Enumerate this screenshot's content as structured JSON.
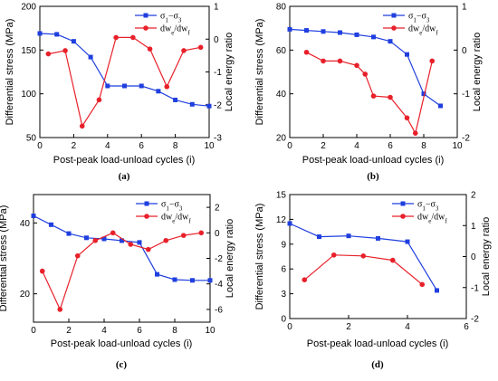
{
  "chart_data": [
    {
      "type": "line",
      "panel_label": "(a)",
      "xlabel": "Post-peak load-unload cycles (i)",
      "ylabel_left": "Differential stress (MPa)",
      "ylabel_right": "Local energy ratio",
      "xlim": [
        0,
        10
      ],
      "xticks": [
        "0",
        "2",
        "4",
        "6",
        "8",
        "10"
      ],
      "ylim_left": [
        50,
        200
      ],
      "yticks_left": [
        "50",
        "100",
        "150",
        "200"
      ],
      "ylim_right": [
        -3,
        1
      ],
      "yticks_right": [
        "-3",
        "-2",
        "-1",
        "0",
        "1"
      ],
      "legend": [
        {
          "name": "σ1−σ3",
          "color": "#1f3fdf"
        },
        {
          "name": "dwe/dwf",
          "color": "#e8202a"
        }
      ],
      "series": [
        {
          "name": "σ1−σ3",
          "axis": "left",
          "color": "#1f3fdf",
          "marker": "square",
          "x": [
            0,
            1,
            2,
            3,
            4,
            5,
            6,
            7,
            8,
            9,
            10
          ],
          "y": [
            169,
            168,
            160,
            142,
            109,
            109,
            109,
            103,
            93,
            88,
            86
          ]
        },
        {
          "name": "dwe/dwf",
          "axis": "right",
          "color": "#e8202a",
          "marker": "circle",
          "x": [
            0.5,
            1.5,
            2.5,
            3.5,
            4.5,
            5.5,
            6.5,
            7.5,
            8.5,
            9.5
          ],
          "y": [
            -0.45,
            -0.35,
            -2.65,
            -1.85,
            0.05,
            0.05,
            -0.3,
            -1.45,
            -0.35,
            -0.25
          ]
        }
      ]
    },
    {
      "type": "line",
      "panel_label": "(b)",
      "xlabel": "Post-peak load-unload cycles (i)",
      "ylabel_left": "Differential stress (MPa)",
      "ylabel_right": "Local energy ratio",
      "xlim": [
        0,
        10
      ],
      "xticks": [
        "0",
        "2",
        "4",
        "6",
        "8",
        "10"
      ],
      "ylim_left": [
        20,
        80
      ],
      "yticks_left": [
        "20",
        "40",
        "60",
        "80"
      ],
      "ylim_right": [
        -2,
        1
      ],
      "yticks_right": [
        "-2",
        "-1",
        "0",
        "1"
      ],
      "legend": [
        {
          "name": "σ1−σ3",
          "color": "#1f3fdf"
        },
        {
          "name": "dwe/dwf",
          "color": "#e8202a"
        }
      ],
      "series": [
        {
          "name": "σ1−σ3",
          "axis": "left",
          "color": "#1f3fdf",
          "marker": "square",
          "x": [
            0,
            1,
            2,
            3,
            4,
            5,
            6,
            7,
            8,
            9
          ],
          "y": [
            69.5,
            69,
            68.5,
            68,
            67,
            66,
            64,
            58,
            40,
            34.5
          ]
        },
        {
          "name": "dwe/dwf",
          "axis": "right",
          "color": "#e8202a",
          "marker": "circle",
          "x": [
            1,
            2,
            3,
            4,
            4.5,
            5,
            6,
            7,
            7.5,
            8.5
          ],
          "y": [
            -0.05,
            -0.25,
            -0.25,
            -0.35,
            -0.55,
            -1.05,
            -1.08,
            -1.55,
            -1.9,
            -0.25
          ]
        }
      ]
    },
    {
      "type": "line",
      "panel_label": "(c)",
      "xlabel": "Post-peak load-unload cycles (i)",
      "ylabel_left": "Differential stress (MPa)",
      "ylabel_right": "Local energy ratio",
      "xlim": [
        0,
        10
      ],
      "xticks": [
        "0",
        "2",
        "4",
        "6",
        "8",
        "10"
      ],
      "ylim_left": [
        12,
        48
      ],
      "yticks_left": [
        "20",
        "40"
      ],
      "ylim_right": [
        -7,
        3
      ],
      "yticks_right": [
        "-6",
        "-4",
        "-2",
        "0",
        "2"
      ],
      "legend": [
        {
          "name": "σ1−σ3",
          "color": "#1f3fdf"
        },
        {
          "name": "dwe/dwf",
          "color": "#e8202a"
        }
      ],
      "series": [
        {
          "name": "σ1−σ3",
          "axis": "left",
          "color": "#1f3fdf",
          "marker": "square",
          "x": [
            0,
            1,
            2,
            3,
            4,
            5,
            6,
            7,
            8,
            9,
            10
          ],
          "y": [
            42,
            39.5,
            37,
            35.8,
            35.5,
            35,
            34.5,
            25.5,
            24,
            23.8,
            23.8
          ]
        },
        {
          "name": "dwe/dwf",
          "axis": "right",
          "color": "#e8202a",
          "marker": "circle",
          "x": [
            0.5,
            1.5,
            2.5,
            3.5,
            4.5,
            5.5,
            6.5,
            7.5,
            8.5,
            9.5
          ],
          "y": [
            -3.0,
            -6.0,
            -1.8,
            -0.6,
            0,
            -0.9,
            -1.3,
            -0.6,
            -0.2,
            0
          ]
        }
      ]
    },
    {
      "type": "line",
      "panel_label": "(d)",
      "xlabel": "Post-peak load-unload cycles (i)",
      "ylabel_left": "Differential stress (MPa)",
      "ylabel_right": "Local energy ratio",
      "xlim": [
        0,
        6
      ],
      "xticks": [
        "0",
        "2",
        "4",
        "6"
      ],
      "ylim_left": [
        0,
        15
      ],
      "yticks_left": [
        "0",
        "3",
        "6",
        "9",
        "12",
        "15"
      ],
      "ylim_right": [
        -2,
        2
      ],
      "yticks_right": [
        "-2",
        "-1",
        "0",
        "1",
        "2"
      ],
      "legend": [
        {
          "name": "σ1−σ3",
          "color": "#1f3fdf"
        },
        {
          "name": "dwe/dwf",
          "color": "#e8202a"
        }
      ],
      "series": [
        {
          "name": "σ1−σ3",
          "axis": "left",
          "color": "#1f3fdf",
          "marker": "square",
          "x": [
            0,
            1,
            2,
            3,
            4,
            5
          ],
          "y": [
            11.5,
            9.9,
            10.0,
            9.7,
            9.3,
            3.4
          ]
        },
        {
          "name": "dwe/dwf",
          "axis": "right",
          "color": "#e8202a",
          "marker": "circle",
          "x": [
            0.5,
            1.5,
            2.5,
            3.5,
            4.5
          ],
          "y": [
            -0.75,
            0.05,
            0.02,
            -0.12,
            -0.9
          ]
        }
      ]
    }
  ]
}
